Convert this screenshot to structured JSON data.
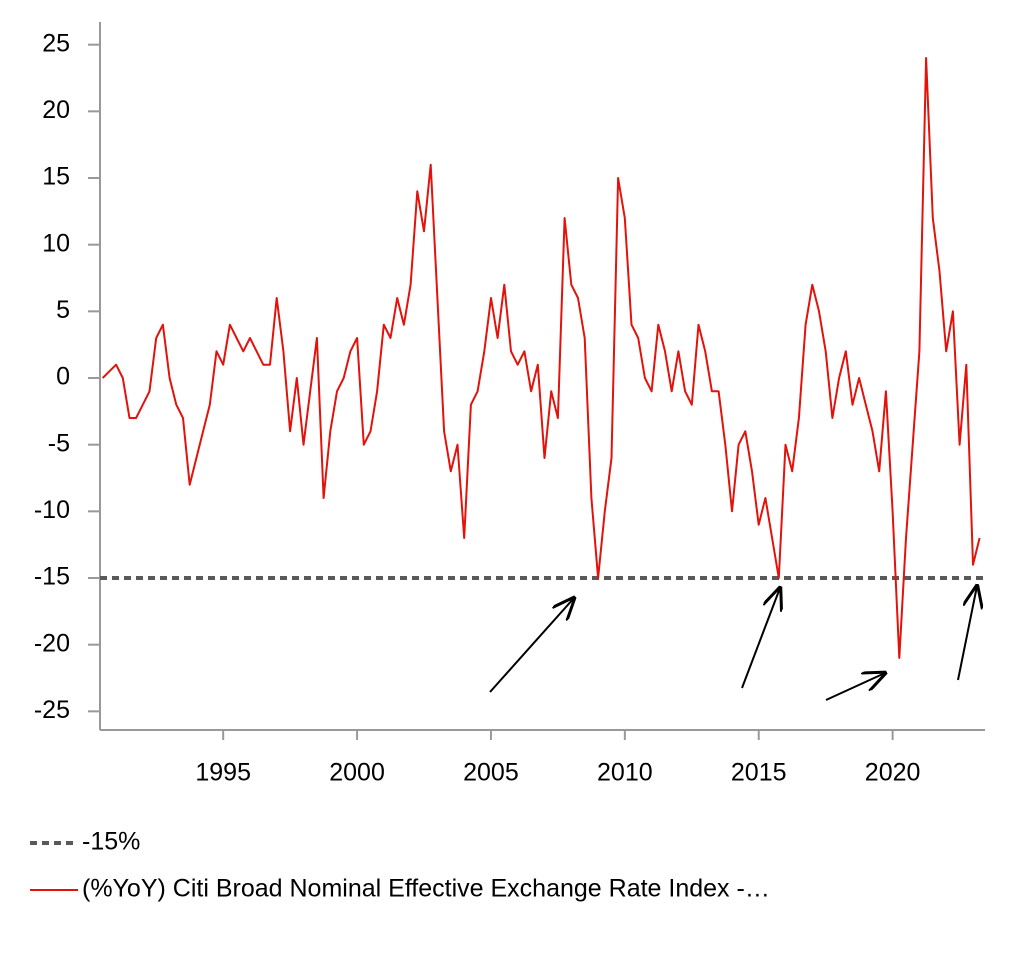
{
  "chart_data": {
    "type": "line",
    "xlim": [
      1990.4,
      2023.45
    ],
    "xticks": [
      1995,
      2000,
      2005,
      2010,
      2015,
      2020
    ],
    "ylim": [
      -26.4,
      26.7
    ],
    "yticks": [
      25,
      20,
      15,
      10,
      5,
      0,
      -5,
      -10,
      -15,
      -20,
      -25
    ],
    "series": [
      {
        "name": "-15%",
        "color": "#595959",
        "dash": true,
        "x": [
          1990.4,
          2023.45
        ],
        "values": [
          -15,
          -15
        ]
      },
      {
        "name": "(%YoY) Citi Broad Nominal Effective Exchange Rate Index -…",
        "color": "#e3120b",
        "dash": false,
        "x": [
          1990.5,
          1990.75,
          1991,
          1991.25,
          1991.5,
          1991.75,
          1992,
          1992.25,
          1992.5,
          1992.75,
          1993,
          1993.25,
          1993.5,
          1993.75,
          1994,
          1994.25,
          1994.5,
          1994.75,
          1995,
          1995.25,
          1995.5,
          1995.75,
          1996,
          1996.25,
          1996.5,
          1996.75,
          1997,
          1997.25,
          1997.5,
          1997.75,
          1998,
          1998.25,
          1998.5,
          1998.75,
          1999,
          1999.25,
          1999.5,
          1999.75,
          2000,
          2000.25,
          2000.5,
          2000.75,
          2001,
          2001.25,
          2001.5,
          2001.75,
          2002,
          2002.25,
          2002.5,
          2002.75,
          2003,
          2003.25,
          2003.5,
          2003.75,
          2004,
          2004.25,
          2004.5,
          2004.75,
          2005,
          2005.25,
          2005.5,
          2005.75,
          2006,
          2006.25,
          2006.5,
          2006.75,
          2007,
          2007.25,
          2007.5,
          2007.75,
          2008,
          2008.25,
          2008.5,
          2008.75,
          2009,
          2009.25,
          2009.5,
          2009.75,
          2010,
          2010.25,
          2010.5,
          2010.75,
          2011,
          2011.25,
          2011.5,
          2011.75,
          2012,
          2012.25,
          2012.5,
          2012.75,
          2013,
          2013.25,
          2013.5,
          2013.75,
          2014,
          2014.25,
          2014.5,
          2014.75,
          2015,
          2015.25,
          2015.5,
          2015.75,
          2016,
          2016.25,
          2016.5,
          2016.75,
          2017,
          2017.25,
          2017.5,
          2017.75,
          2018,
          2018.25,
          2018.5,
          2018.75,
          2019,
          2019.25,
          2019.5,
          2019.75,
          2020,
          2020.25,
          2020.5,
          2020.75,
          2021,
          2021.25,
          2021.5,
          2021.75,
          2022,
          2022.25,
          2022.5,
          2022.75,
          2023,
          2023.25
        ],
        "values": [
          0,
          0.5,
          1,
          0,
          -3,
          -3,
          -2,
          -1,
          3,
          4,
          0,
          -2,
          -3,
          -8,
          -6,
          -4,
          -2,
          2,
          1,
          4,
          3,
          2,
          3,
          2,
          1,
          1,
          6,
          2,
          -4,
          0,
          -5,
          -1,
          3,
          -9,
          -4,
          -1,
          0,
          2,
          3,
          -5,
          -4,
          -1,
          4,
          3,
          6,
          4,
          7,
          14,
          11,
          16,
          6,
          -4,
          -7,
          -5,
          -12,
          -2,
          -1,
          2,
          6,
          3,
          7,
          2,
          1,
          2,
          -1,
          1,
          -6,
          -1,
          -3,
          12,
          7,
          6,
          3,
          -9,
          -15,
          -10,
          -6,
          15,
          12,
          4,
          3,
          0,
          -1,
          4,
          2,
          -1,
          2,
          -1,
          -2,
          4,
          2,
          -1,
          -1,
          -5,
          -10,
          -5,
          -4,
          -7,
          -11,
          -9,
          -12,
          -15,
          -5,
          -7,
          -3,
          4,
          7,
          5,
          2,
          -3,
          0,
          2,
          -2,
          0,
          -2,
          -4,
          -7,
          -1,
          -10,
          -21,
          -12,
          -5,
          2,
          24,
          12,
          8,
          2,
          5,
          -5,
          1,
          -14,
          -12
        ]
      }
    ]
  }
}
